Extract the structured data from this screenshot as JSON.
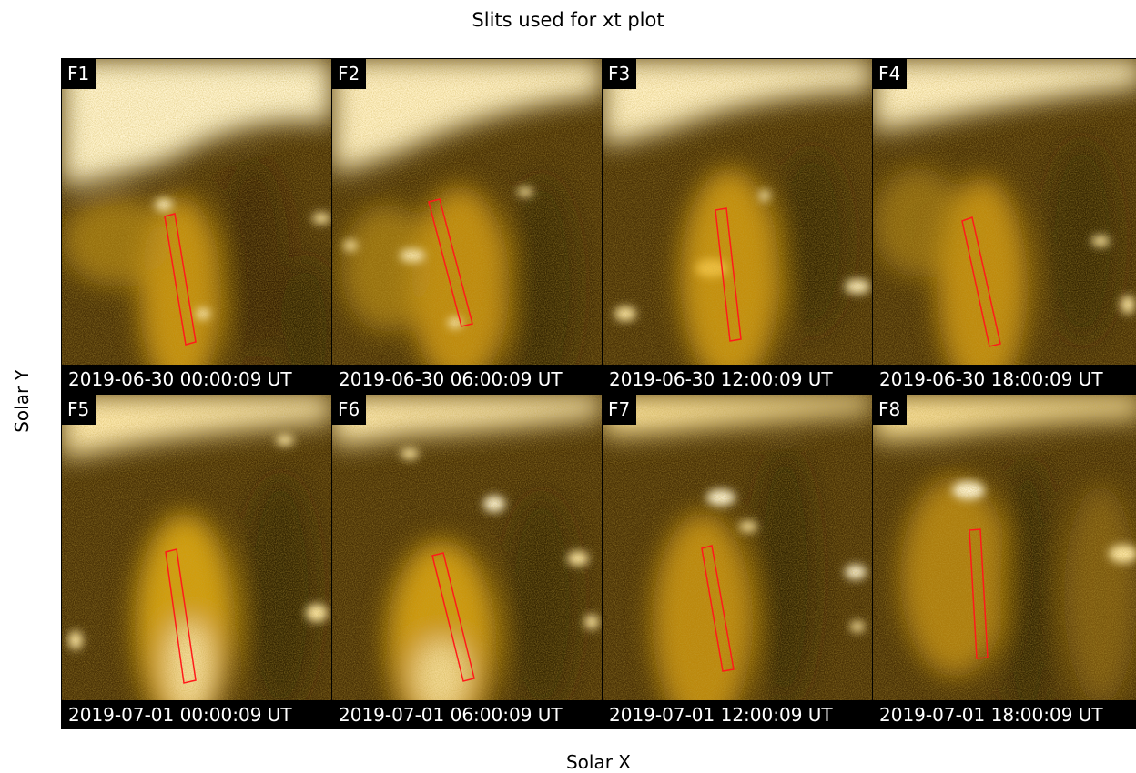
{
  "figure": {
    "title": "Slits used for xt plot",
    "xlabel": "Solar X",
    "ylabel": "Solar Y"
  },
  "colors": {
    "slit": "#ff1a1a",
    "base": "#3a2600",
    "glow": "#ffc21e",
    "hot": "#fff6d8"
  },
  "panels": [
    {
      "label": "F1",
      "timestamp": "2019-06-30 00:00:09 UT"
    },
    {
      "label": "F2",
      "timestamp": "2019-06-30 06:00:09 UT"
    },
    {
      "label": "F3",
      "timestamp": "2019-06-30 12:00:09 UT"
    },
    {
      "label": "F4",
      "timestamp": "2019-06-30 18:00:09 UT"
    },
    {
      "label": "F5",
      "timestamp": "2019-07-01 00:00:09 UT"
    },
    {
      "label": "F6",
      "timestamp": "2019-07-01 06:00:09 UT"
    },
    {
      "label": "F7",
      "timestamp": "2019-07-01 12:00:09 UT"
    },
    {
      "label": "F8",
      "timestamp": "2019-07-01 18:00:09 UT"
    }
  ]
}
